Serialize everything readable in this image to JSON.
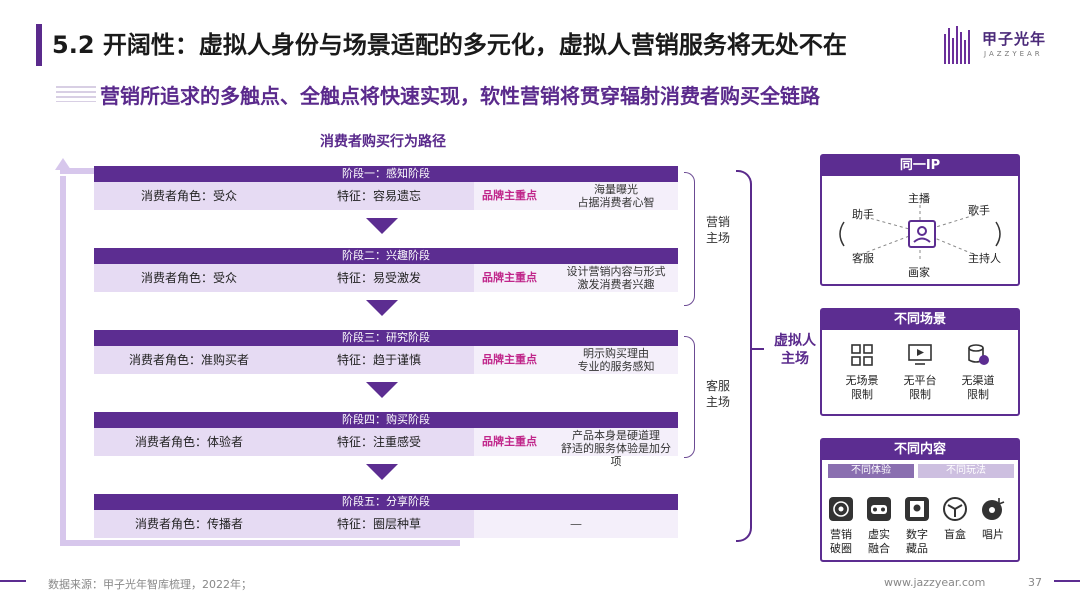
{
  "header": {
    "title": "5.2 开阔性：虚拟人身份与场景适配的多元化，虚拟人营销服务将无处不在",
    "subtitle": "营销所追求的多触点、全触点将快速实现，软性营销将贯穿辐射消费者购买全链路"
  },
  "logo": {
    "name_cn": "甲子光年",
    "name_en": "JAZZYEAR"
  },
  "path": {
    "title": "消费者购买行为路径",
    "stages": [
      {
        "head": "阶段一：感知阶段",
        "role": "消费者角色：受众",
        "feature": "特征：容易遗忘",
        "brand": "品牌主重点",
        "desc": [
          "海量曝光",
          "占据消费者心智"
        ]
      },
      {
        "head": "阶段二：兴趣阶段",
        "role": "消费者角色：受众",
        "feature": "特征：易受激发",
        "brand": "品牌主重点",
        "desc": [
          "设计营销内容与形式",
          "激发消费者兴趣"
        ]
      },
      {
        "head": "阶段三：研究阶段",
        "role": "消费者角色：准购买者",
        "feature": "特征：趋于谨慎",
        "brand": "品牌主重点",
        "desc": [
          "明示购买理由",
          "专业的服务感知"
        ]
      },
      {
        "head": "阶段四：购买阶段",
        "role": "消费者角色：体验者",
        "feature": "特征：注重感受",
        "brand": "品牌主重点",
        "desc": [
          "产品本身是硬道理",
          "舒适的服务体验是加分项"
        ]
      },
      {
        "head": "阶段五：分享阶段",
        "role": "消费者角色：传播者",
        "feature": "特征：圈层种草",
        "dash": "—"
      }
    ],
    "brace_marketing": [
      "营销",
      "主场"
    ],
    "brace_service": [
      "客服",
      "主场"
    ],
    "big_label": [
      "虚拟人",
      "主场"
    ]
  },
  "panel_ip": {
    "title": "同一IP",
    "nodes": {
      "top": "主播",
      "left_top": "助手",
      "right_top": "歌手",
      "left_bottom": "客服",
      "right_bottom": "主持人",
      "bottom": "画家"
    }
  },
  "panel_scene": {
    "title": "不同场景",
    "items": [
      {
        "label": [
          "无场景",
          "限制"
        ],
        "icon": "grid-icon"
      },
      {
        "label": [
          "无平台",
          "限制"
        ],
        "icon": "screen-icon"
      },
      {
        "label": [
          "无渠道",
          "限制"
        ],
        "icon": "channel-icon"
      }
    ]
  },
  "panel_content": {
    "title": "不同内容",
    "tag_a": "不同体验",
    "tag_b": "不同玩法",
    "items": [
      {
        "label": [
          "营销",
          "破圈"
        ],
        "icon": "target-icon"
      },
      {
        "label": [
          "虚实",
          "融合"
        ],
        "icon": "vr-icon"
      },
      {
        "label": [
          "数字",
          "藏品"
        ],
        "icon": "collectible-icon"
      },
      {
        "label": [
          "盲盒"
        ],
        "icon": "blindbox-icon"
      },
      {
        "label": [
          "唱片"
        ],
        "icon": "record-icon"
      }
    ]
  },
  "footer": {
    "source": "数据来源：甲子光年智库梳理，2022年；",
    "url": "www.jazzyear.com",
    "page": "37"
  },
  "colors": {
    "primary": "#5c2d91",
    "light": "#e6dbf3",
    "accent": "#c0268a"
  }
}
